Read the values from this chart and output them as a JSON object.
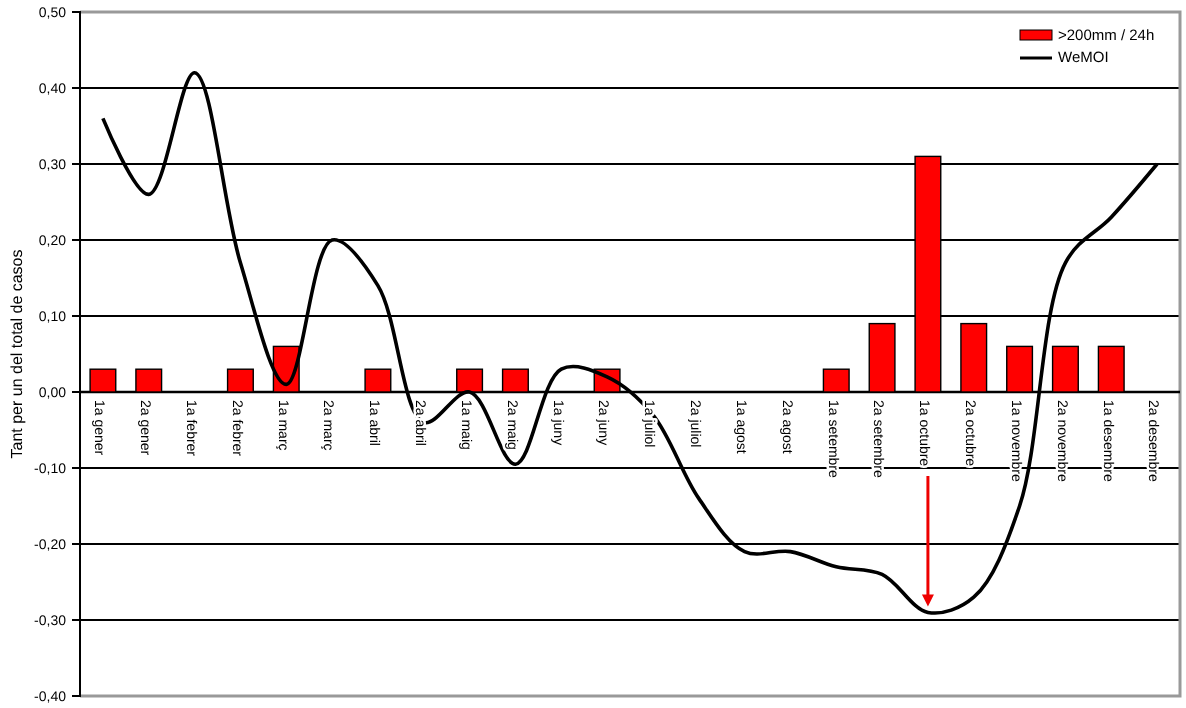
{
  "chart_data": {
    "type": "bar",
    "ylabel": "Tant per un del total de casos",
    "categories": [
      "1a gener",
      "2a gener",
      "1a febrer",
      "2a febrer",
      "1a març",
      "2a març",
      "1a abril",
      "2a abril",
      "1a maig",
      "2a maig",
      "1a juny",
      "2a juny",
      "1a juliol",
      "2a juliol",
      "1a agost",
      "2a agost",
      "1a setembre",
      "2a setembre",
      "1a octubre",
      "2a octubre",
      "1a novembre",
      "2a novembre",
      "1a desembre",
      "2a desembre"
    ],
    "series": [
      {
        "name": ">200mm / 24h",
        "color": "#ff0000",
        "values": [
          0.03,
          0.03,
          null,
          0.03,
          0.06,
          null,
          0.03,
          null,
          0.03,
          0.03,
          null,
          0.03,
          null,
          null,
          null,
          null,
          0.03,
          0.09,
          0.31,
          0.09,
          0.06,
          0.06,
          0.06,
          null
        ]
      },
      {
        "name": "WeMOI",
        "type": "line",
        "color": "#000000",
        "values": [
          0.36,
          0.26,
          0.42,
          0.17,
          0.01,
          0.2,
          0.14,
          -0.04,
          0.0,
          -0.095,
          0.03,
          0.02,
          -0.03,
          -0.14,
          -0.21,
          -0.21,
          -0.23,
          -0.24,
          -0.29,
          -0.27,
          -0.15,
          0.17,
          0.23,
          0.3
        ]
      }
    ],
    "ylim": [
      -0.4,
      0.5
    ],
    "yticks": [
      {
        "value": -0.4,
        "label": "-0,40"
      },
      {
        "value": -0.3,
        "label": "-0,30"
      },
      {
        "value": -0.2,
        "label": "-0,20"
      },
      {
        "value": -0.1,
        "label": "-0,10"
      },
      {
        "value": 0,
        "label": "0,00"
      },
      {
        "value": 0.1,
        "label": "0,10"
      },
      {
        "value": 0.2,
        "label": "0,20"
      },
      {
        "value": 0.3,
        "label": "0,30"
      },
      {
        "value": 0.4,
        "label": "0,40"
      },
      {
        "value": 0.5,
        "label": "0,50"
      }
    ],
    "grid": "y",
    "legend": "top right",
    "marker": "none",
    "line_style": "solid"
  }
}
